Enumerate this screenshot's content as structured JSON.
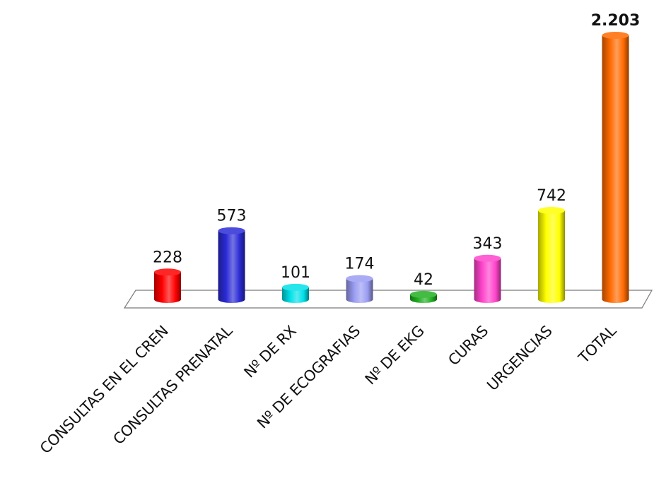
{
  "chart_data": {
    "type": "bar",
    "title": "",
    "xlabel": "",
    "ylabel": "",
    "ylim": [
      0,
      2203
    ],
    "grid": false,
    "legend": "none",
    "categories": [
      "CONSULTAS EN EL CREN",
      "CONSULTAS PRENATAL",
      "Nº DE RX",
      "Nº DE ECOGRAFIAS",
      "Nº DE EKG",
      "CURAS",
      "URGENCIAS",
      "TOTAL"
    ],
    "values": [
      228,
      573,
      101,
      174,
      42,
      343,
      742,
      2203
    ],
    "value_labels": [
      "228",
      "573",
      "101",
      "174",
      "42",
      "343",
      "742",
      "2.203"
    ],
    "colors": [
      "#ff0000",
      "#2b2bd6",
      "#00e0e8",
      "#9a9cf2",
      "#22b022",
      "#ff44cc",
      "#ffff00",
      "#ff6a00"
    ]
  }
}
